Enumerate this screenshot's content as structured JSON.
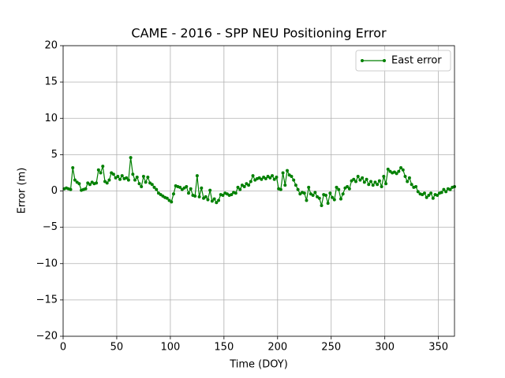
{
  "chart_data": {
    "type": "line",
    "title": "CAME - 2016 - SPP NEU Positioning Error",
    "xlabel": "Time (DOY)",
    "ylabel": "Error (m)",
    "xlim": [
      0,
      365
    ],
    "ylim": [
      -20,
      20
    ],
    "xticks": [
      0,
      50,
      100,
      150,
      200,
      250,
      300,
      350
    ],
    "yticks": [
      {
        "value": -20,
        "label": "−20"
      },
      {
        "value": -15,
        "label": "−15"
      },
      {
        "value": -10,
        "label": "−10"
      },
      {
        "value": -5,
        "label": "−5"
      },
      0,
      5,
      10,
      15,
      20
    ],
    "grid": true,
    "legend": "upper right",
    "x": [
      1,
      3,
      5,
      7,
      9,
      11,
      13,
      15,
      17,
      19,
      21,
      23,
      25,
      27,
      29,
      31,
      33,
      35,
      37,
      39,
      41,
      43,
      45,
      47,
      49,
      51,
      53,
      55,
      57,
      59,
      61,
      63,
      65,
      67,
      69,
      71,
      73,
      75,
      77,
      79,
      81,
      83,
      85,
      87,
      89,
      91,
      93,
      95,
      97,
      99,
      101,
      103,
      105,
      107,
      109,
      111,
      113,
      115,
      117,
      119,
      121,
      123,
      125,
      127,
      129,
      131,
      133,
      135,
      137,
      139,
      141,
      143,
      145,
      147,
      149,
      151,
      153,
      155,
      157,
      159,
      161,
      163,
      165,
      167,
      169,
      171,
      173,
      175,
      177,
      179,
      181,
      183,
      185,
      187,
      189,
      191,
      193,
      195,
      197,
      199,
      201,
      203,
      205,
      207,
      209,
      211,
      213,
      215,
      217,
      219,
      221,
      223,
      225,
      227,
      229,
      231,
      233,
      235,
      237,
      239,
      241,
      243,
      245,
      247,
      249,
      251,
      253,
      255,
      257,
      259,
      261,
      263,
      265,
      267,
      269,
      271,
      273,
      275,
      277,
      279,
      281,
      283,
      285,
      287,
      289,
      291,
      293,
      295,
      297,
      299,
      301,
      303,
      305,
      307,
      309,
      311,
      313,
      315,
      317,
      319,
      321,
      323,
      325,
      327,
      329,
      331,
      333,
      335,
      337,
      339,
      341,
      343,
      345,
      347,
      349,
      351,
      353,
      355,
      357,
      359,
      361,
      363,
      365
    ],
    "series": [
      {
        "name": "East error",
        "color": "#008000",
        "values": [
          0.3,
          0.4,
          0.3,
          0.2,
          3.2,
          1.5,
          1.2,
          1.0,
          0.1,
          0.2,
          0.3,
          1.1,
          0.9,
          1.2,
          1.0,
          1.1,
          2.9,
          2.5,
          3.4,
          1.3,
          1.1,
          1.5,
          2.5,
          2.3,
          1.8,
          2.0,
          1.6,
          2.1,
          1.7,
          1.8,
          1.5,
          4.6,
          2.3,
          1.5,
          1.9,
          1.0,
          0.6,
          2.0,
          1.2,
          1.9,
          1.1,
          0.9,
          0.5,
          0.2,
          -0.3,
          -0.5,
          -0.7,
          -0.9,
          -1.0,
          -1.3,
          -1.5,
          -0.4,
          0.7,
          0.6,
          0.5,
          0.2,
          0.4,
          0.6,
          -0.3,
          0.3,
          -0.6,
          -0.7,
          2.1,
          -0.8,
          0.4,
          -1.0,
          -0.8,
          -1.2,
          0.1,
          -1.4,
          -1.1,
          -1.6,
          -1.3,
          -0.5,
          -0.6,
          -0.3,
          -0.4,
          -0.6,
          -0.5,
          -0.2,
          -0.3,
          0.5,
          0.2,
          0.8,
          0.6,
          1.0,
          0.8,
          1.3,
          2.1,
          1.5,
          1.7,
          1.8,
          1.6,
          1.9,
          1.7,
          2.0,
          1.8,
          2.1,
          1.6,
          1.9,
          0.3,
          0.2,
          2.5,
          0.8,
          2.8,
          2.2,
          2.0,
          1.5,
          0.8,
          0.2,
          -0.4,
          -0.2,
          -0.3,
          -1.3,
          0.5,
          -0.4,
          -0.6,
          -0.2,
          -0.8,
          -1.0,
          -2.0,
          -0.5,
          -0.6,
          -1.7,
          -0.3,
          -0.9,
          -1.2,
          0.5,
          0.2,
          -1.1,
          -0.4,
          0.4,
          0.6,
          0.3,
          1.4,
          1.6,
          1.3,
          2.0,
          1.5,
          1.8,
          1.2,
          1.6,
          0.9,
          1.3,
          0.8,
          1.2,
          0.9,
          1.4,
          0.6,
          2.0,
          1.0,
          3.0,
          2.7,
          2.5,
          2.6,
          2.4,
          2.7,
          3.2,
          2.9,
          2.0,
          1.3,
          1.8,
          0.9,
          0.5,
          0.6,
          -0.1,
          -0.4,
          -0.5,
          -0.3,
          -0.9,
          -0.6,
          -0.3,
          -1.0,
          -0.5,
          -0.6,
          -0.3,
          -0.2,
          0.2,
          -0.1,
          0.3,
          0.2,
          0.5,
          0.6
        ]
      }
    ]
  }
}
